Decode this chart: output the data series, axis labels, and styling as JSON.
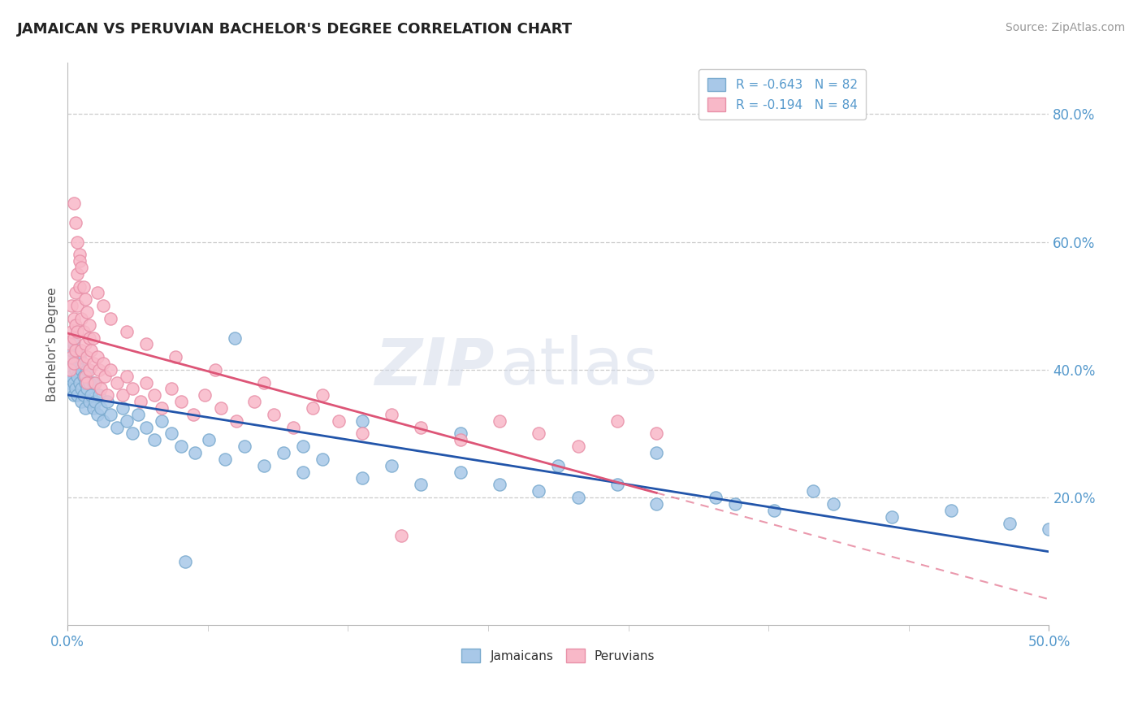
{
  "title": "JAMAICAN VS PERUVIAN BACHELOR'S DEGREE CORRELATION CHART",
  "source": "Source: ZipAtlas.com",
  "xlim": [
    0.0,
    0.5
  ],
  "ylim": [
    0.0,
    0.88
  ],
  "ylabel": "Bachelor's Degree",
  "legend_label_bottom": [
    "Jamaicans",
    "Peruvians"
  ],
  "jamaicans_color": "#a8c8e8",
  "jamaicans_edge": "#7aaace",
  "peruvians_color": "#f8b8c8",
  "peruvians_edge": "#e890a8",
  "trendline_jamaicans_color": "#2255aa",
  "trendline_peruvians_color": "#dd5577",
  "R_jamaicans": -0.643,
  "N_jamaicans": 82,
  "R_peruvians": -0.194,
  "N_peruvians": 84,
  "background_color": "#ffffff",
  "grid_color": "#cccccc",
  "tick_color": "#5599cc",
  "ytick_vals": [
    0.2,
    0.4,
    0.6,
    0.8
  ],
  "ytick_labels": [
    "20.0%",
    "40.0%",
    "60.0%",
    "80.0%"
  ],
  "xtick_vals": [
    0.0,
    0.5
  ],
  "xtick_labels": [
    "0.0%",
    "50.0%"
  ],
  "jx": [
    0.001,
    0.001,
    0.002,
    0.002,
    0.002,
    0.002,
    0.003,
    0.003,
    0.003,
    0.003,
    0.004,
    0.004,
    0.004,
    0.005,
    0.005,
    0.005,
    0.006,
    0.006,
    0.007,
    0.007,
    0.007,
    0.008,
    0.008,
    0.009,
    0.009,
    0.01,
    0.01,
    0.011,
    0.011,
    0.012,
    0.013,
    0.013,
    0.014,
    0.015,
    0.016,
    0.017,
    0.018,
    0.02,
    0.022,
    0.025,
    0.028,
    0.03,
    0.033,
    0.036,
    0.04,
    0.044,
    0.048,
    0.053,
    0.058,
    0.065,
    0.072,
    0.08,
    0.09,
    0.1,
    0.11,
    0.12,
    0.13,
    0.15,
    0.165,
    0.18,
    0.2,
    0.22,
    0.24,
    0.26,
    0.28,
    0.3,
    0.33,
    0.36,
    0.39,
    0.42,
    0.45,
    0.48,
    0.5,
    0.38,
    0.34,
    0.3,
    0.25,
    0.2,
    0.15,
    0.12,
    0.085,
    0.06
  ],
  "jy": [
    0.38,
    0.4,
    0.42,
    0.37,
    0.43,
    0.39,
    0.41,
    0.36,
    0.44,
    0.38,
    0.4,
    0.37,
    0.43,
    0.39,
    0.41,
    0.36,
    0.38,
    0.42,
    0.37,
    0.4,
    0.35,
    0.39,
    0.36,
    0.38,
    0.34,
    0.37,
    0.4,
    0.35,
    0.38,
    0.36,
    0.34,
    0.38,
    0.35,
    0.33,
    0.36,
    0.34,
    0.32,
    0.35,
    0.33,
    0.31,
    0.34,
    0.32,
    0.3,
    0.33,
    0.31,
    0.29,
    0.32,
    0.3,
    0.28,
    0.27,
    0.29,
    0.26,
    0.28,
    0.25,
    0.27,
    0.24,
    0.26,
    0.23,
    0.25,
    0.22,
    0.24,
    0.22,
    0.21,
    0.2,
    0.22,
    0.19,
    0.2,
    0.18,
    0.19,
    0.17,
    0.18,
    0.16,
    0.15,
    0.21,
    0.19,
    0.27,
    0.25,
    0.3,
    0.32,
    0.28,
    0.45,
    0.1
  ],
  "px": [
    0.001,
    0.001,
    0.002,
    0.002,
    0.002,
    0.003,
    0.003,
    0.003,
    0.004,
    0.004,
    0.004,
    0.005,
    0.005,
    0.005,
    0.006,
    0.006,
    0.007,
    0.007,
    0.008,
    0.008,
    0.009,
    0.009,
    0.01,
    0.01,
    0.011,
    0.011,
    0.012,
    0.013,
    0.014,
    0.015,
    0.016,
    0.017,
    0.018,
    0.019,
    0.02,
    0.022,
    0.025,
    0.028,
    0.03,
    0.033,
    0.037,
    0.04,
    0.044,
    0.048,
    0.053,
    0.058,
    0.064,
    0.07,
    0.078,
    0.086,
    0.095,
    0.105,
    0.115,
    0.125,
    0.138,
    0.15,
    0.165,
    0.18,
    0.2,
    0.22,
    0.24,
    0.26,
    0.28,
    0.3,
    0.003,
    0.004,
    0.005,
    0.006,
    0.007,
    0.008,
    0.009,
    0.01,
    0.011,
    0.013,
    0.015,
    0.018,
    0.022,
    0.03,
    0.04,
    0.055,
    0.075,
    0.1,
    0.13,
    0.17
  ],
  "py": [
    0.4,
    0.44,
    0.5,
    0.46,
    0.42,
    0.48,
    0.45,
    0.41,
    0.52,
    0.47,
    0.43,
    0.55,
    0.5,
    0.46,
    0.58,
    0.53,
    0.43,
    0.48,
    0.41,
    0.46,
    0.39,
    0.44,
    0.42,
    0.38,
    0.45,
    0.4,
    0.43,
    0.41,
    0.38,
    0.42,
    0.4,
    0.37,
    0.41,
    0.39,
    0.36,
    0.4,
    0.38,
    0.36,
    0.39,
    0.37,
    0.35,
    0.38,
    0.36,
    0.34,
    0.37,
    0.35,
    0.33,
    0.36,
    0.34,
    0.32,
    0.35,
    0.33,
    0.31,
    0.34,
    0.32,
    0.3,
    0.33,
    0.31,
    0.29,
    0.32,
    0.3,
    0.28,
    0.32,
    0.3,
    0.66,
    0.63,
    0.6,
    0.57,
    0.56,
    0.53,
    0.51,
    0.49,
    0.47,
    0.45,
    0.52,
    0.5,
    0.48,
    0.46,
    0.44,
    0.42,
    0.4,
    0.38,
    0.36,
    0.14
  ]
}
